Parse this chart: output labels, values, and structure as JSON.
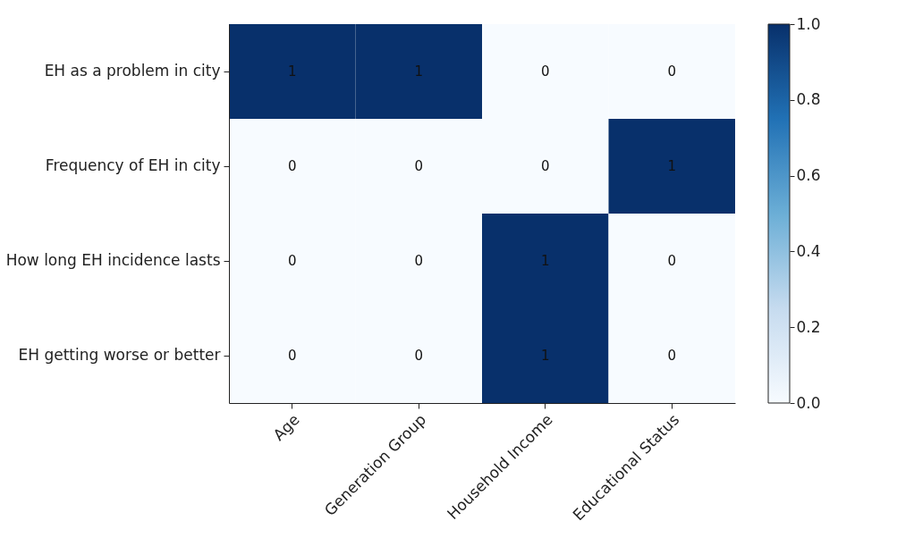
{
  "chart_data": {
    "type": "heatmap",
    "categories": [
      "Age",
      "Generation Group",
      "Household Income",
      "Educational Status"
    ],
    "y_categories": [
      "EH as a problem in city",
      "Frequency of EH in city",
      "How long EH incidence lasts",
      "EH getting worse or better"
    ],
    "cells": [
      [
        1,
        1,
        0,
        0
      ],
      [
        0,
        0,
        0,
        1
      ],
      [
        0,
        0,
        1,
        0
      ],
      [
        0,
        0,
        1,
        0
      ]
    ],
    "clim": [
      0,
      1
    ],
    "cticks": [
      {
        "value": 0,
        "label": "0.0"
      },
      {
        "value": 0.2,
        "label": "0.2"
      },
      {
        "value": 0.4,
        "label": "0.4"
      },
      {
        "value": 0.6,
        "label": "0.6"
      },
      {
        "value": 0.8,
        "label": "0.8"
      },
      {
        "value": 1,
        "label": "1.0"
      }
    ],
    "data_labels": true
  }
}
